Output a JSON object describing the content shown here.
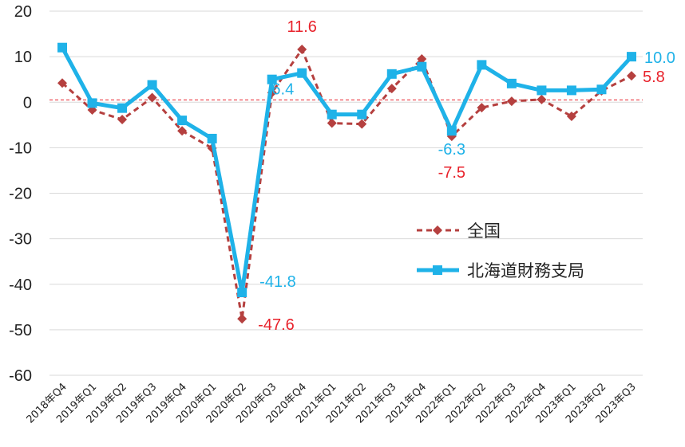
{
  "chart_data": {
    "type": "line",
    "categories": [
      "2018年Q4",
      "2019年Q1",
      "2019年Q2",
      "2019年Q3",
      "2019年Q4",
      "2020年Q1",
      "2020年Q2",
      "2020年Q3",
      "2020年Q4",
      "2021年Q1",
      "2021年Q2",
      "2021年Q3",
      "2021年Q4",
      "2022年Q1",
      "2022年Q2",
      "2022年Q3",
      "2022年Q4",
      "2023年Q1",
      "2023年Q2",
      "2023年Q3"
    ],
    "ylim": [
      -60,
      20
    ],
    "yticks": [
      20,
      10,
      0,
      -10,
      -20,
      -30,
      -40,
      -50,
      -60
    ],
    "grid": true,
    "legend_position": "right-middle",
    "reference_line": 0.5,
    "series": [
      {
        "name": "全国",
        "color": "#b5403f",
        "style": "dashed-diamond",
        "values": [
          4.2,
          -1.7,
          -3.8,
          1.0,
          -6.3,
          -10.1,
          -47.6,
          2.1,
          11.6,
          -4.6,
          -4.8,
          3.0,
          9.5,
          -7.5,
          -1.2,
          0.2,
          0.6,
          -3.1,
          2.5,
          5.8
        ]
      },
      {
        "name": "北海道財務支局",
        "color": "#1fb2e8",
        "style": "solid-square",
        "values": [
          12.0,
          -0.2,
          -1.3,
          3.8,
          -4.0,
          -8.0,
          -41.8,
          5.0,
          6.4,
          -2.7,
          -2.7,
          6.2,
          7.8,
          -6.3,
          8.2,
          4.1,
          2.6,
          2.6,
          2.8,
          10.0
        ]
      }
    ],
    "annotations": [
      {
        "series": 0,
        "index": 6,
        "text": "-47.6",
        "color": "#e8222b"
      },
      {
        "series": 0,
        "index": 8,
        "text": "11.6",
        "color": "#e8222b"
      },
      {
        "series": 0,
        "index": 13,
        "text": "-7.5",
        "color": "#e8222b"
      },
      {
        "series": 0,
        "index": 19,
        "text": "5.8",
        "color": "#e8222b"
      },
      {
        "series": 1,
        "index": 6,
        "text": "-41.8",
        "color": "#1fb2e8"
      },
      {
        "series": 1,
        "index": 8,
        "text": "6.4",
        "color": "#1fb2e8"
      },
      {
        "series": 1,
        "index": 13,
        "text": "-6.3",
        "color": "#1fb2e8"
      },
      {
        "series": 1,
        "index": 19,
        "text": "10.0",
        "color": "#1fb2e8"
      }
    ]
  }
}
